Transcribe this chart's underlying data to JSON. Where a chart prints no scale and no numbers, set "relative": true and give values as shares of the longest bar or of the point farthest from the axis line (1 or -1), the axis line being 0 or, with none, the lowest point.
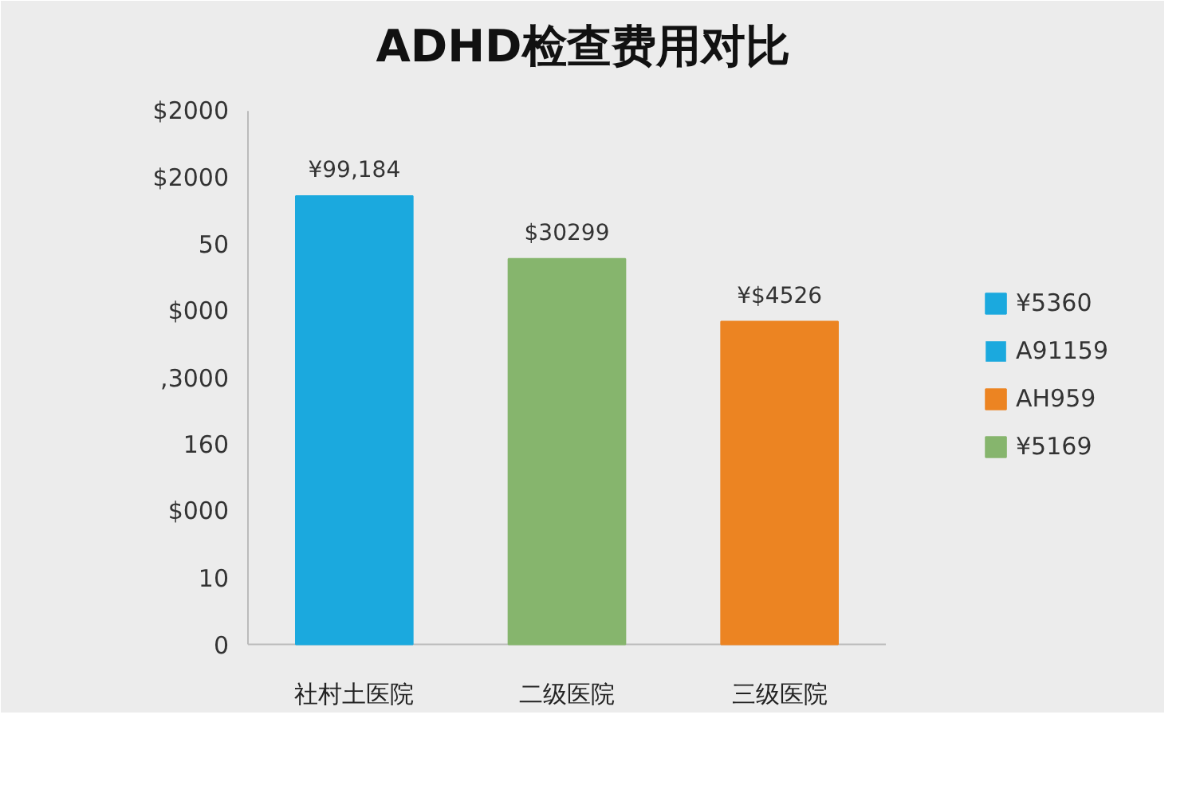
{
  "chart_data": {
    "type": "bar",
    "title": "ADHD检查费用对比",
    "categories": [
      "社村土医院",
      "二级医院",
      "三级医院"
    ],
    "relative": true,
    "series": [
      {
        "name": "¥5360",
        "color": "#1ba9de",
        "values": [
          1,
          null,
          null
        ]
      },
      {
        "name": "A91159",
        "color": "#1ba9de",
        "values": [
          null,
          null,
          null
        ]
      },
      {
        "name": "AH959",
        "color": "#ec8422",
        "values": [
          null,
          null,
          0.72
        ]
      },
      {
        "name": "¥5169",
        "color": "#86b56d",
        "values": [
          null,
          0.86,
          null
        ]
      }
    ],
    "stacked": true,
    "annotations": [
      "0",
      "10",
      "$000",
      "160",
      ",3000",
      "$000",
      "50",
      "$2000",
      "$2000",
      {
        "text": "¥99,184",
        "x": "社村土医院",
        "y": 1
      },
      {
        "text": "$30299",
        "x": "二级医院",
        "y": 0.86
      },
      {
        "text": "¥$4526",
        "x": "三级医院",
        "y": 0.72
      }
    ],
    "legend": "right"
  }
}
